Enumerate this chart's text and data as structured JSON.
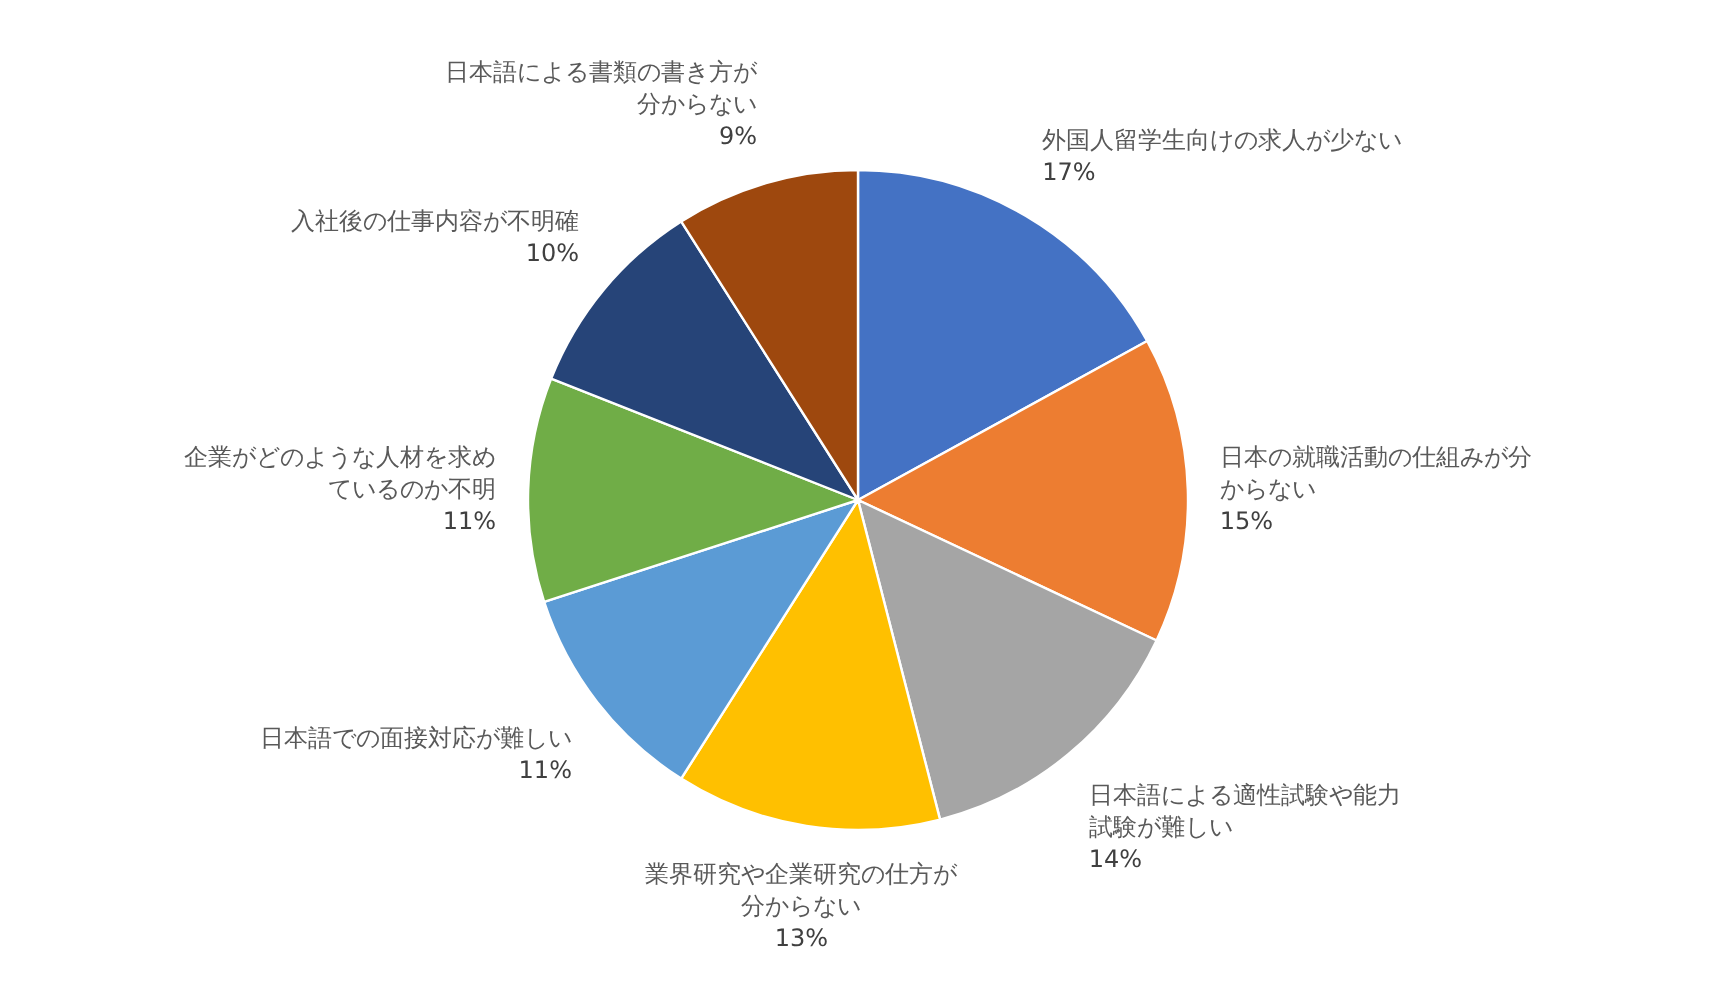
{
  "chart_data": {
    "type": "pie",
    "categories": [
      "外国人留学生向けの求人が少ない",
      "日本の就職活動の仕組みが分からない",
      "日本語による適性試験や能力試験が難しい",
      "業界研究や企業研究の仕方が分からない",
      "日本語での面接対応が難しい",
      "企業がどのような人材を求めているのか不明",
      "入社後の仕事内容が不明確",
      "日本語による書類の書き方が分からない"
    ],
    "values": [
      17,
      15,
      14,
      13,
      11,
      11,
      10,
      9
    ],
    "colors": [
      "#4472c4",
      "#ed7d31",
      "#a5a5a5",
      "#ffc000",
      "#5b9bd5",
      "#70ad47",
      "#264478",
      "#9e480e"
    ],
    "value_labels": [
      "17%",
      "15%",
      "14%",
      "13%",
      "11%",
      "11%",
      "10%",
      "9%"
    ]
  }
}
